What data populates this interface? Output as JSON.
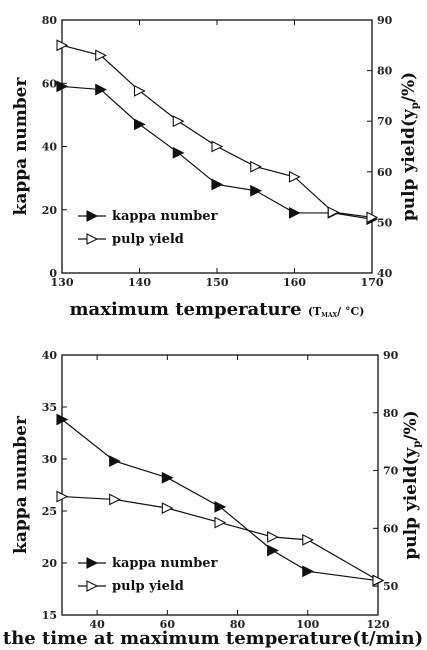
{
  "chart_data": [
    {
      "type": "line",
      "x": [
        130,
        135,
        140,
        145,
        150,
        155,
        160,
        165,
        170
      ],
      "xlim": [
        130,
        170
      ],
      "xticks": [
        "130",
        "140",
        "150",
        "160",
        "170"
      ],
      "ylim_left": [
        0,
        80
      ],
      "yticks_left": [
        "0",
        "20",
        "40",
        "60",
        "80"
      ],
      "ylim_right": [
        40,
        90
      ],
      "yticks_right": [
        "40",
        "50",
        "60",
        "70",
        "80",
        "90"
      ],
      "xlabel_main": "maximum temperature",
      "xlabel_unit_open": "(T",
      "xlabel_unit_sub": "MAX",
      "xlabel_unit_close": "/ °C)",
      "ylabel_left": "kappa number",
      "ylabel_right": "pulp yield(y",
      "ylabel_right_sub": "p",
      "ylabel_right_unit": "/%)",
      "series": [
        {
          "name": "kappa number",
          "axis": "left",
          "marker": "filled-triangle-right",
          "values": [
            59,
            58,
            47,
            38,
            28,
            26,
            19,
            19,
            17
          ]
        },
        {
          "name": "pulp yield",
          "axis": "right",
          "marker": "open-triangle-right",
          "values": [
            85,
            83,
            76,
            70,
            65,
            61,
            59,
            52,
            51
          ]
        }
      ],
      "legend_position": "lower-left"
    },
    {
      "type": "line",
      "x": [
        30,
        45,
        60,
        75,
        90,
        100,
        120
      ],
      "xlim": [
        30,
        120
      ],
      "xticks": [
        "40",
        "60",
        "80",
        "100",
        "120"
      ],
      "xtick_values": [
        40,
        60,
        80,
        100,
        120
      ],
      "ylim_left": [
        15,
        40
      ],
      "yticks_left": [
        "15",
        "20",
        "25",
        "30",
        "35",
        "40"
      ],
      "ylim_right": [
        45,
        90
      ],
      "yticks_right": [
        "50",
        "60",
        "70",
        "80",
        "90"
      ],
      "xlabel": "the time at maximum temperature(t/min)",
      "ylabel_left": "kappa number",
      "ylabel_right": "pulp yield(y",
      "ylabel_right_sub": "p",
      "ylabel_right_unit": "/%)",
      "series": [
        {
          "name": "kappa number",
          "axis": "left",
          "marker": "filled-triangle-right",
          "values": [
            33.8,
            29.8,
            28.2,
            25.4,
            21.2,
            19.2,
            18.3
          ]
        },
        {
          "name": "pulp yield",
          "axis": "right",
          "marker": "open-triangle-right",
          "values": [
            65.5,
            65,
            63.5,
            61,
            58.5,
            58,
            51
          ]
        }
      ],
      "legend_position": "lower-left"
    }
  ]
}
